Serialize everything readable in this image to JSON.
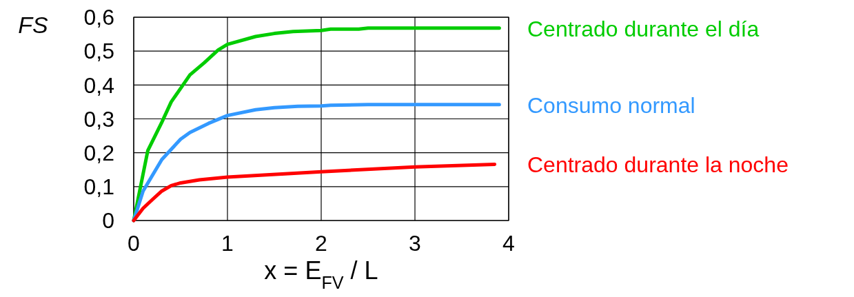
{
  "chart_data": {
    "type": "line",
    "xlabel": "x = E$_{FV}$ / L",
    "ylabel": "FS",
    "x": [
      0,
      0.15,
      0.3,
      0.4,
      0.6,
      0.75,
      0.9,
      1.0,
      1.3,
      1.5,
      1.7,
      2.0,
      2.1,
      2.4,
      2.5,
      3.9
    ],
    "series": [
      {
        "name": "Centrado durante el día",
        "color": "#00cc00",
        "values": [
          0,
          0.206,
          0.29,
          0.35,
          0.43,
          0.465,
          0.503,
          0.52,
          0.543,
          0.552,
          0.558,
          0.561,
          0.565,
          0.565,
          0.568,
          0.568
        ]
      },
      {
        "name": "Consumo normal",
        "color": "#3399ff",
        "x": [
          0,
          0.1,
          0.3,
          0.5,
          0.6,
          0.8,
          1.0,
          1.3,
          1.5,
          1.75,
          2.0,
          2.1,
          2.5,
          3.9
        ],
        "values": [
          0,
          0.087,
          0.18,
          0.24,
          0.26,
          0.287,
          0.31,
          0.327,
          0.333,
          0.337,
          0.338,
          0.34,
          0.342,
          0.342
        ]
      },
      {
        "name": "Centrado durante la noche",
        "color": "#ff0000",
        "x": [
          0,
          0.1,
          0.2,
          0.3,
          0.4,
          0.5,
          0.7,
          1.0,
          2.0,
          3.0,
          3.85
        ],
        "values": [
          0,
          0.036,
          0.062,
          0.087,
          0.103,
          0.111,
          0.12,
          0.128,
          0.144,
          0.158,
          0.166
        ]
      }
    ],
    "xlim": [
      0,
      4
    ],
    "xticks": [
      0,
      1,
      2,
      3,
      4
    ],
    "ylim": [
      0,
      0.6
    ],
    "yticks": [
      {
        "value": 0,
        "label": "0"
      },
      {
        "value": 0.1,
        "label": "0,1"
      },
      {
        "value": 0.2,
        "label": "0,2"
      },
      {
        "value": 0.3,
        "label": "0,3"
      },
      {
        "value": 0.4,
        "label": "0,4"
      },
      {
        "value": 0.5,
        "label": "0,5"
      },
      {
        "value": 0.6,
        "label": "0,6"
      }
    ],
    "grid": true,
    "line_style": "solid",
    "marker": "none"
  }
}
